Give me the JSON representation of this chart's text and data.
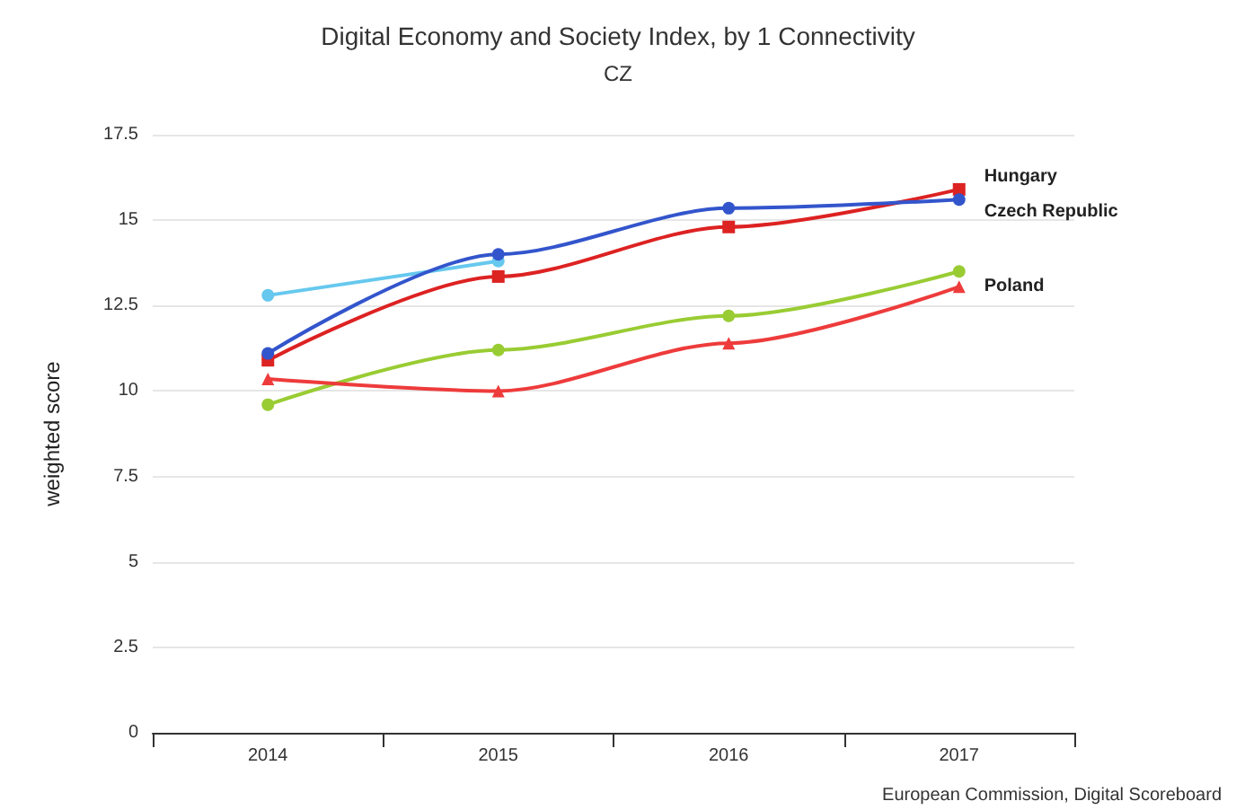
{
  "chart_data": {
    "type": "line",
    "title": "Digital Economy and Society Index, by 1 Connectivity",
    "subtitle": "CZ",
    "ylabel": "weighted score",
    "annotations": [
      "European Commission, Digital Scoreboard"
    ],
    "categories": [
      "2014",
      "2015",
      "2016",
      "2017"
    ],
    "series": [
      {
        "color": "#66c8ee",
        "marker": "circle",
        "values": [
          12.8,
          13.8,
          null,
          null
        ]
      },
      {
        "color": "#99cc33",
        "marker": "circle",
        "values": [
          9.6,
          11.2,
          12.2,
          13.5
        ]
      },
      {
        "name": "Poland",
        "color": "#ee3b3b",
        "marker": "triangle",
        "values": [
          10.35,
          10.0,
          11.4,
          13.05
        ]
      },
      {
        "name": "Hungary",
        "color": "#dd2222",
        "marker": "square",
        "values": [
          10.9,
          13.35,
          14.8,
          15.9
        ]
      },
      {
        "name": "Czech Republic",
        "color": "#3355cc",
        "marker": "circle",
        "values": [
          11.1,
          14.0,
          15.35,
          15.6
        ]
      }
    ],
    "ylim": [
      0,
      17.5
    ],
    "yticks": [
      0,
      2.5,
      5,
      7.5,
      10,
      12.5,
      15,
      17.5
    ],
    "grid": "y",
    "legend": false
  }
}
